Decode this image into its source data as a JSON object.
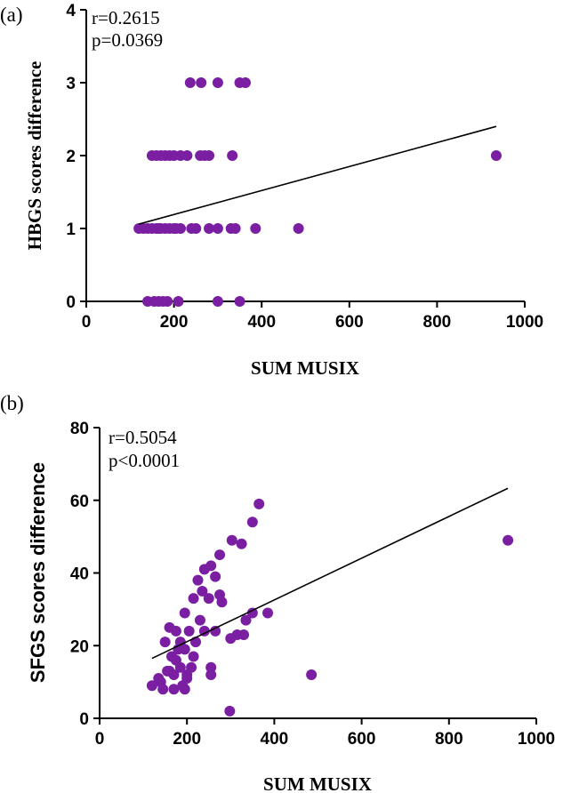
{
  "chart_data": [
    {
      "type": "scatter",
      "panel_label": "(a)",
      "xlabel": "SUM MUSIX",
      "ylabel": "HBGS scores difference",
      "xlim": [
        0,
        1000
      ],
      "ylim": [
        0,
        4
      ],
      "xticks": [
        0,
        200,
        400,
        600,
        800,
        1000
      ],
      "yticks": [
        0,
        1,
        2,
        3,
        4
      ],
      "annotations": [
        "r=0.2615",
        "p=0.0369"
      ],
      "marker_color": "#7B1FA2",
      "fit_line": {
        "x": [
          120,
          935
        ],
        "y": [
          1.06,
          2.4
        ]
      },
      "x": [
        237,
        262,
        300,
        350,
        363,
        150,
        160,
        170,
        180,
        190,
        200,
        215,
        230,
        260,
        270,
        280,
        333,
        120,
        130,
        140,
        150,
        160,
        165,
        170,
        180,
        190,
        200,
        205,
        215,
        240,
        250,
        280,
        300,
        330,
        340,
        386,
        484,
        140,
        155,
        165,
        175,
        185,
        210,
        300,
        350,
        935
      ],
      "y": [
        3,
        3,
        3,
        3,
        3,
        2,
        2,
        2,
        2,
        2,
        2,
        2,
        2,
        2,
        2,
        2,
        2,
        1,
        1,
        1,
        1,
        1,
        1,
        1,
        1,
        1,
        1,
        1,
        1,
        1,
        1,
        1,
        1,
        1,
        1,
        1,
        1,
        0,
        0,
        0,
        0,
        0,
        0,
        0,
        0,
        2
      ]
    },
    {
      "type": "scatter",
      "panel_label": "(b)",
      "xlabel": "SUM MUSIX",
      "ylabel": "SFGS scores difference",
      "xlim": [
        0,
        1000
      ],
      "ylim": [
        0,
        80
      ],
      "xticks": [
        0,
        200,
        400,
        600,
        800,
        1000
      ],
      "yticks": [
        0,
        20,
        40,
        60,
        80
      ],
      "annotations": [
        "r=0.5054",
        "p<0.0001"
      ],
      "marker_color": "#7B1FA2",
      "fit_line": {
        "x": [
          120,
          935
        ],
        "y": [
          16.5,
          63.3
        ]
      },
      "x": [
        365,
        350,
        303,
        325,
        275,
        240,
        255,
        265,
        225,
        235,
        275,
        250,
        280,
        215,
        330,
        350,
        385,
        300,
        315,
        335,
        265,
        195,
        160,
        175,
        185,
        205,
        220,
        240,
        150,
        165,
        180,
        195,
        215,
        230,
        255,
        120,
        140,
        155,
        170,
        185,
        200,
        135,
        145,
        160,
        175,
        190,
        200,
        210,
        170,
        195,
        255,
        485,
        298,
        935
      ],
      "y": [
        59,
        54,
        49,
        48,
        45,
        41,
        42,
        39,
        38,
        35,
        34,
        33,
        32,
        33,
        23,
        29,
        29,
        22,
        23,
        27,
        24,
        29,
        25,
        24,
        21,
        24,
        21,
        24,
        21,
        17,
        19,
        19,
        17,
        27,
        12,
        9,
        10,
        13,
        12,
        14,
        11,
        11,
        8,
        13,
        16,
        9,
        12,
        14,
        8,
        8,
        14,
        12,
        2,
        49
      ]
    }
  ]
}
